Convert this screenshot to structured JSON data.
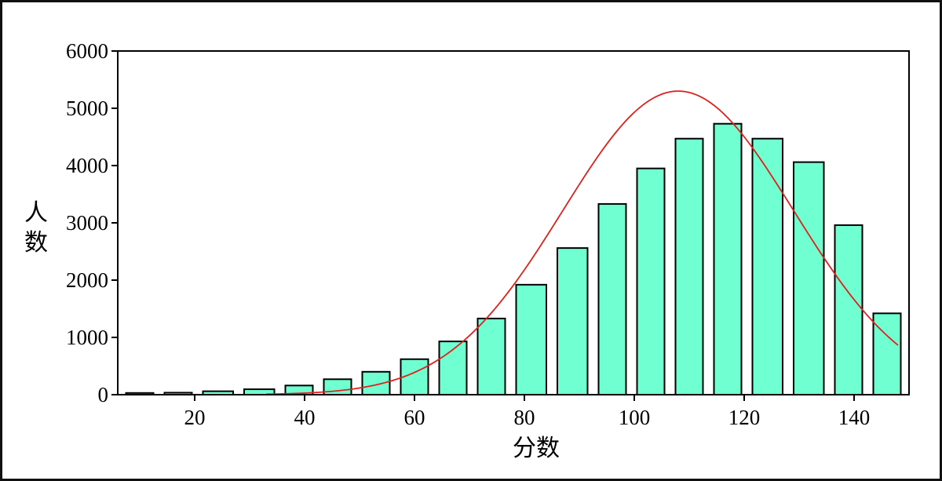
{
  "chart_data": {
    "type": "bar",
    "title": "",
    "xlabel": "分数",
    "ylabel": "人数",
    "xlim": [
      6,
      150
    ],
    "ylim": [
      0,
      6000
    ],
    "x_ticks": [
      20,
      40,
      60,
      80,
      100,
      120,
      140
    ],
    "y_ticks": [
      0,
      1000,
      2000,
      3000,
      4000,
      5000,
      6000
    ],
    "grid": false,
    "legend": "none",
    "bar_color": "#6fffd0",
    "bar_edge_color": "#000000",
    "curve_color": "#e0201c",
    "bins": [
      {
        "x0": 7.5,
        "x1": 12.5,
        "value": 30
      },
      {
        "x0": 14.5,
        "x1": 19.5,
        "value": 35
      },
      {
        "x0": 21.5,
        "x1": 27,
        "value": 60
      },
      {
        "x0": 29,
        "x1": 34.5,
        "value": 95
      },
      {
        "x0": 36.5,
        "x1": 41.5,
        "value": 160
      },
      {
        "x0": 43.5,
        "x1": 48.5,
        "value": 270
      },
      {
        "x0": 50.5,
        "x1": 55.5,
        "value": 400
      },
      {
        "x0": 57.5,
        "x1": 62.5,
        "value": 620
      },
      {
        "x0": 64.5,
        "x1": 69.5,
        "value": 930
      },
      {
        "x0": 71.5,
        "x1": 76.5,
        "value": 1330
      },
      {
        "x0": 78.5,
        "x1": 84,
        "value": 1920
      },
      {
        "x0": 86,
        "x1": 91.5,
        "value": 2560
      },
      {
        "x0": 93.5,
        "x1": 98.5,
        "value": 3330
      },
      {
        "x0": 100.5,
        "x1": 105.5,
        "value": 3950
      },
      {
        "x0": 107.5,
        "x1": 112.5,
        "value": 4470
      },
      {
        "x0": 114.5,
        "x1": 119.5,
        "value": 4730
      },
      {
        "x0": 121.5,
        "x1": 127,
        "value": 4470
      },
      {
        "x0": 129,
        "x1": 134.5,
        "value": 4060
      },
      {
        "x0": 136.5,
        "x1": 141.5,
        "value": 2960
      },
      {
        "x0": 143.5,
        "x1": 148.5,
        "value": 1420
      }
    ],
    "curve": {
      "type": "normal",
      "mean": 108,
      "sd": 21,
      "peak": 5300,
      "x_range": [
        33,
        148
      ]
    }
  }
}
